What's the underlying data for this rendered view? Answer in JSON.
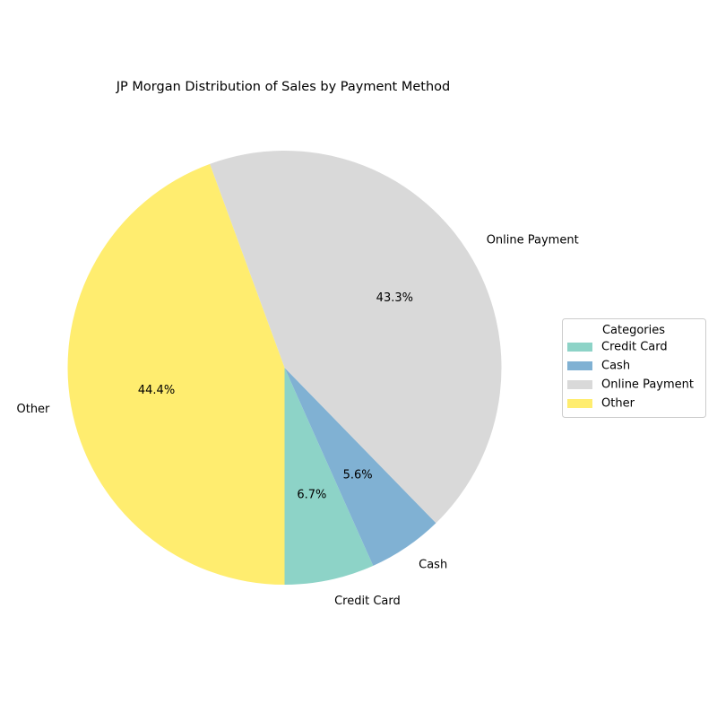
{
  "chart_data": {
    "type": "pie",
    "title": "JP Morgan Distribution of Sales by Payment Method",
    "start_angle_deg": 270,
    "direction": "counterclockwise",
    "slices": [
      {
        "label": "Credit Card",
        "pct": 6.7,
        "pct_label": "6.7%",
        "color": "#8dd3c7"
      },
      {
        "label": "Cash",
        "pct": 5.6,
        "pct_label": "5.6%",
        "color": "#80b1d3"
      },
      {
        "label": "Online Payment",
        "pct": 43.3,
        "pct_label": "43.3%",
        "color": "#d9d9d9"
      },
      {
        "label": "Other",
        "pct": 44.4,
        "pct_label": "44.4%",
        "color": "#ffed6f"
      }
    ],
    "legend": {
      "title": "Categories",
      "placement": "right",
      "entries": [
        "Credit Card",
        "Cash",
        "Online Payment",
        "Other"
      ]
    }
  }
}
